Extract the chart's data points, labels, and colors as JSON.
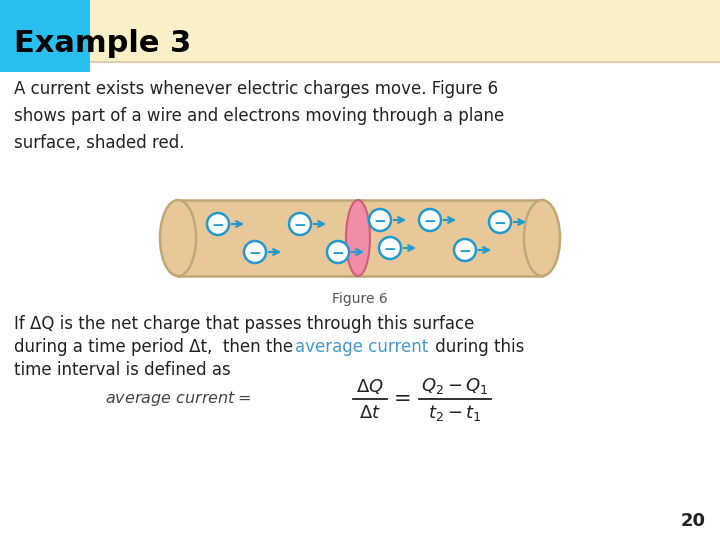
{
  "title": "Example 3",
  "header_bg": "#FAF0C8",
  "header_accent": "#29BFEE",
  "body_bg": "#FFFFFF",
  "page_number": "20",
  "body_text_1": "A current exists whenever electric charges move. Figure 6\nshows part of a wire and electrons moving through a plane\nsurface, shaded red.",
  "figure_caption": "Figure 6",
  "highlight_color": "#4499CC",
  "text_color": "#222222",
  "wire_fill": "#E8C898",
  "wire_border": "#BFA878",
  "electron_stroke": "#2299CC",
  "plane_fill": "#F088A8",
  "plane_border": "#CC5577",
  "header_line": "#DDCCAA"
}
